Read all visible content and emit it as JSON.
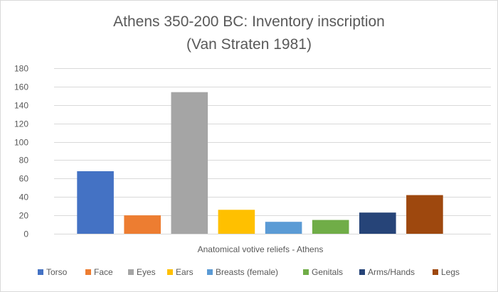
{
  "chart_data": {
    "type": "bar",
    "title": "Athens 350-200 BC: Inventory inscription",
    "subtitle": "(Van Straten 1981)",
    "xlabel": "Anatomical votive reliefs - Athens",
    "ylabel": "",
    "ylim": [
      0,
      180
    ],
    "yticks": [
      0,
      20,
      40,
      60,
      80,
      100,
      120,
      140,
      160,
      180
    ],
    "grid": true,
    "legend_position": "bottom",
    "categories": [
      "Anatomical votive reliefs - Athens"
    ],
    "series": [
      {
        "name": "Torso",
        "values": [
          68
        ],
        "color": "#4472C4"
      },
      {
        "name": "Face",
        "values": [
          20
        ],
        "color": "#ED7D31"
      },
      {
        "name": "Eyes",
        "values": [
          154
        ],
        "color": "#A5A5A5"
      },
      {
        "name": "Ears",
        "values": [
          26
        ],
        "color": "#FFC000"
      },
      {
        "name": "Breasts (female)",
        "values": [
          13
        ],
        "color": "#5B9BD5"
      },
      {
        "name": "Genitals",
        "values": [
          15
        ],
        "color": "#70AD47"
      },
      {
        "name": "Arms/Hands",
        "values": [
          23
        ],
        "color": "#264478"
      },
      {
        "name": "Legs",
        "values": [
          42
        ],
        "color": "#9E480E"
      }
    ]
  }
}
